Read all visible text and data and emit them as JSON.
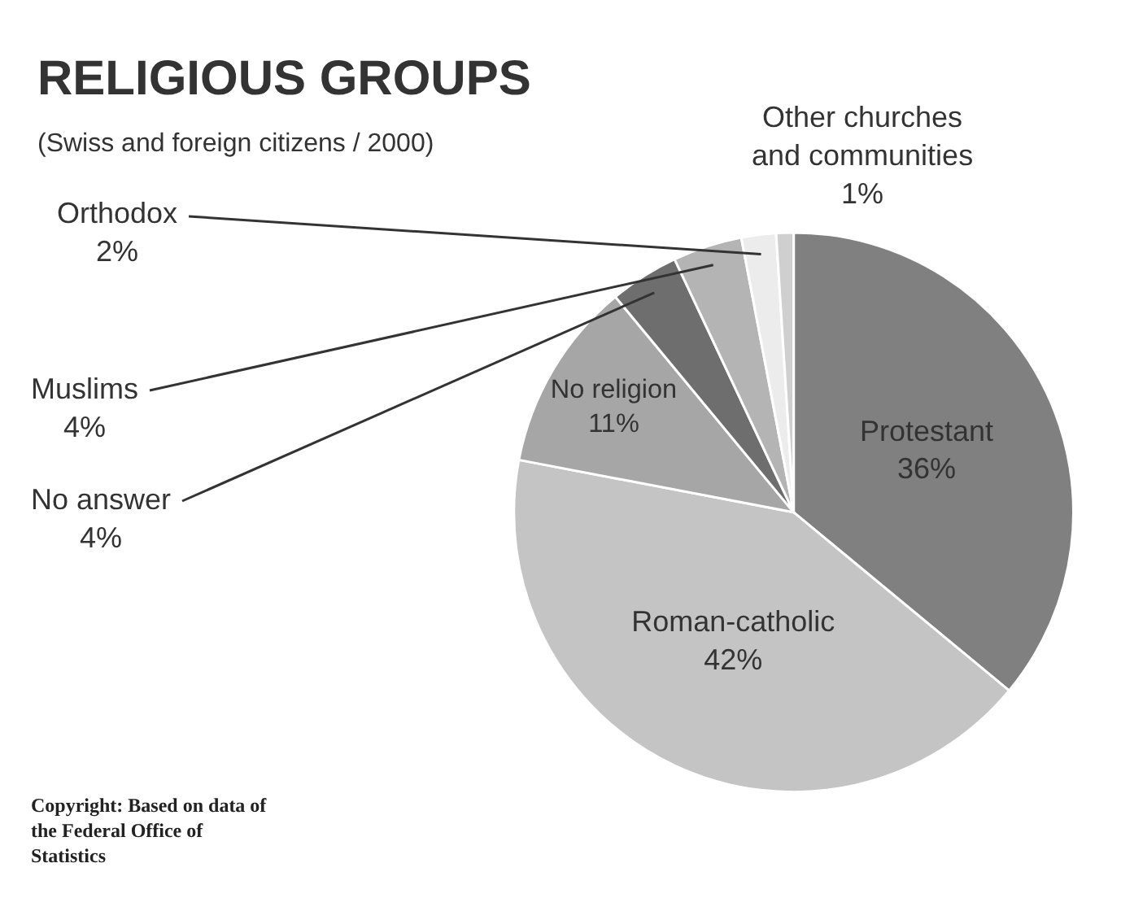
{
  "chart_data": {
    "type": "pie",
    "title": "RELIGIOUS GROUPS",
    "subtitle": "(Swiss and foreign citizens / 2000)",
    "categories": [
      "Protestant",
      "Roman-catholic",
      "No religion",
      "No answer",
      "Muslims",
      "Orthodox",
      "Other churches and communities"
    ],
    "values": [
      36,
      42,
      11,
      4,
      4,
      2,
      1
    ],
    "value_labels": [
      "36%",
      "42%",
      "11%",
      "4%",
      "4%",
      "2%",
      "1%"
    ],
    "colors": [
      "#808080",
      "#c4c4c4",
      "#a6a6a6",
      "#6e6e6e",
      "#b4b4b4",
      "#ececec",
      "#cfcfcf"
    ],
    "legend": false,
    "annotations": [
      "Copyright:  Based on data of the Federal Office of Statistics"
    ]
  }
}
